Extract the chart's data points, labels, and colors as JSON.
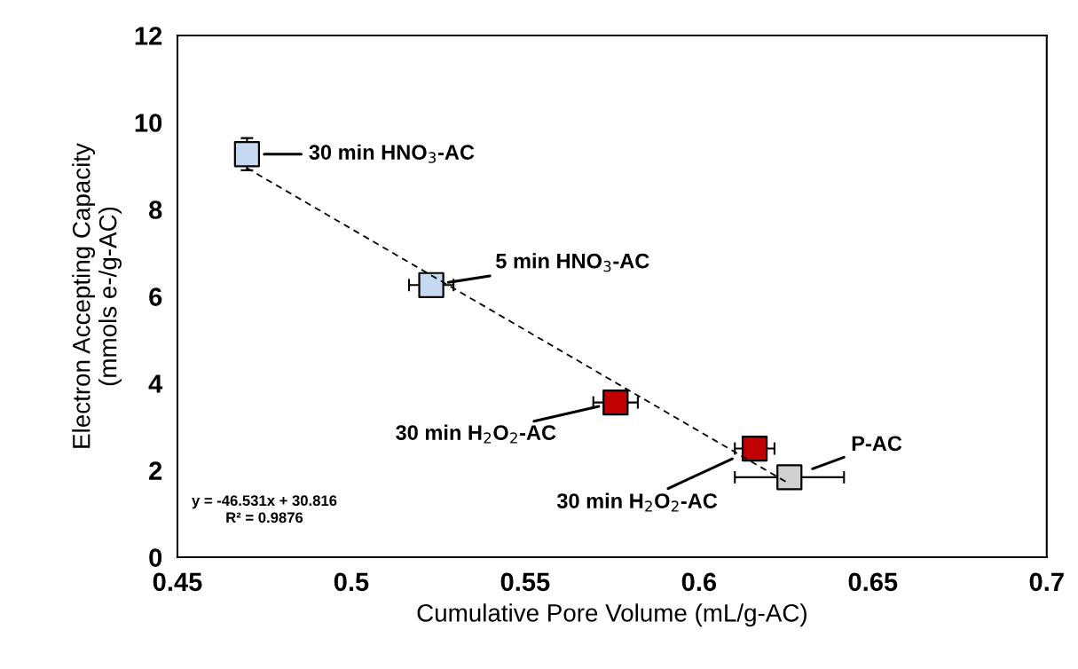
{
  "chart_data": {
    "type": "scatter",
    "xlabel": "Cumulative Pore Volume (mL/g-AC)",
    "ylabel": "Electron Accepting Capacity\n(mmols e-/g-AC)",
    "xlim": [
      0.45,
      0.7
    ],
    "ylim": [
      0,
      12
    ],
    "xticks": [
      0.45,
      0.5,
      0.55,
      0.6,
      0.65,
      0.7
    ],
    "yticks": [
      0,
      2,
      4,
      6,
      8,
      10,
      12
    ],
    "grid": false,
    "marker": "square",
    "series": [
      {
        "name": "30 min HNO$_{3}$-AC",
        "color": "#c5d9f1",
        "x": [
          0.47
        ],
        "values": [
          9.27
        ],
        "errors": [
          0.37
        ]
      },
      {
        "name": "5 min HNO$_{3}$-AC",
        "color": "#c5d9f1",
        "x": [
          0.523
        ],
        "values": [
          6.26
        ],
        "xerrors": [
          0.0064
        ]
      },
      {
        "name": "30 min H$_{2}$O$_{2}$-AC",
        "color": "#c00000",
        "x": [
          0.576
        ],
        "values": [
          3.56
        ],
        "xerrors": [
          0.0064
        ]
      },
      {
        "name": "30 min H$_{2}$O$_{2}$-AC",
        "color": "#c00000",
        "x": [
          0.616
        ],
        "values": [
          2.5
        ],
        "xerrors": [
          0.0057
        ]
      },
      {
        "name": "P-AC",
        "color": "#d0d0d0",
        "x": [
          0.626
        ],
        "values": [
          1.84
        ],
        "xerrors": [
          0.0157
        ]
      },
      {
        "type": "line",
        "line_style": "dashed",
        "marker": "none",
        "color": "#000000",
        "x": [
          0.47,
          0.626
        ],
        "values": [
          8.95,
          1.69
        ]
      }
    ],
    "annotations": [
      "y = -46.531x + 30.816\nR² = 0.9876"
    ]
  }
}
